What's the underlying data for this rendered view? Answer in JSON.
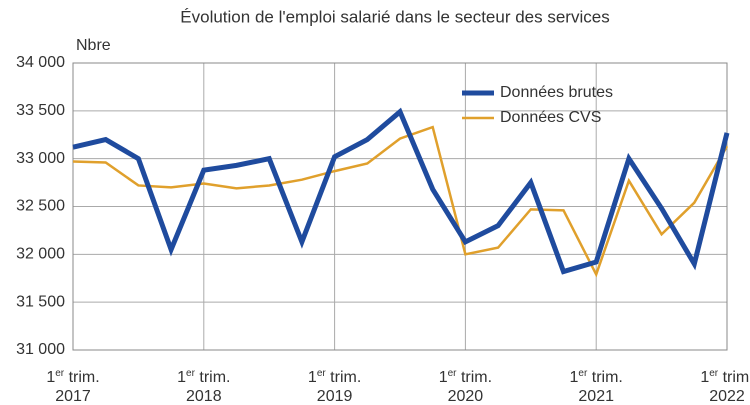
{
  "chart_data": {
    "type": "line",
    "title": "Évolution de l'emploi salarié dans le secteur des services",
    "y_axis_label": "Nbre",
    "categories": [
      "1er trim. 2017",
      null,
      null,
      null,
      "1er trim. 2018",
      null,
      null,
      null,
      "1er trim. 2019",
      null,
      null,
      null,
      "1er trim. 2020",
      null,
      null,
      null,
      "1er trim. 2021",
      null,
      null,
      null,
      "1er trim. 2022"
    ],
    "series": [
      {
        "name": "Données brutes",
        "color": "#1f4b9e",
        "width": 5,
        "values": [
          33120,
          33200,
          33000,
          32050,
          32880,
          32930,
          33000,
          32130,
          33020,
          33200,
          33490,
          32680,
          32130,
          32300,
          32750,
          31820,
          31920,
          33000,
          32480,
          31900,
          33270
        ]
      },
      {
        "name": "Données CVS",
        "color": "#e0a02c",
        "width": 2.5,
        "values": [
          32970,
          32960,
          32720,
          32700,
          32740,
          32690,
          32720,
          32780,
          32870,
          32950,
          33210,
          33330,
          32000,
          32070,
          32470,
          32460,
          31790,
          32770,
          32210,
          32540,
          33130
        ]
      }
    ],
    "ylim": [
      31000,
      34000
    ],
    "yticks": [
      {
        "value": 31000,
        "label": "31 000"
      },
      {
        "value": 31500,
        "label": "31 500"
      },
      {
        "value": 32000,
        "label": "32 000"
      },
      {
        "value": 32500,
        "label": "32 500"
      },
      {
        "value": 33000,
        "label": "33 000"
      },
      {
        "value": 33500,
        "label": "33 500"
      },
      {
        "value": 34000,
        "label": "34 000"
      }
    ],
    "grid": true,
    "legend": "top-right"
  }
}
